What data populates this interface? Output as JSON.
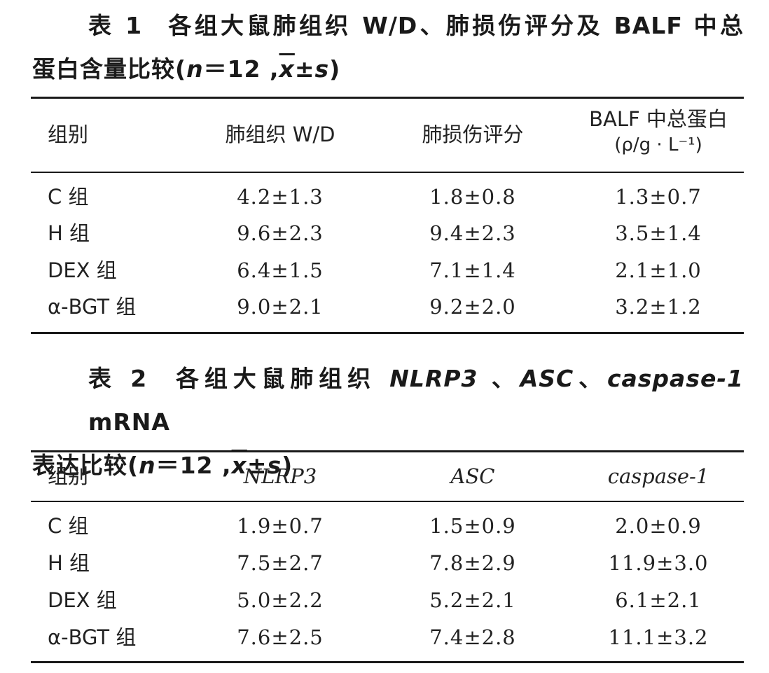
{
  "table1": {
    "caption": {
      "number": "表 1",
      "title_line1": "各组大鼠肺组织 W/D、肺损伤评分及 BALF 中总",
      "title_line2_prefix": "蛋白含量比较(",
      "n_label": "n",
      "n_value": "＝12 ,",
      "xbar": "x",
      "pm_s": "±",
      "s_label": "s",
      "close": ")"
    },
    "headers": [
      "组别",
      "肺组织 W/D",
      "肺损伤评分",
      "BALF 中总蛋白",
      "(ρ/g · L⁻¹)"
    ],
    "rows": [
      {
        "group": "C 组",
        "wd": "4.2±1.3",
        "score": "1.8±0.8",
        "protein": "1.3±0.7"
      },
      {
        "group": "H 组",
        "wd": "9.6±2.3",
        "score": "9.4±2.3",
        "protein": "3.5±1.4"
      },
      {
        "group": "DEX 组",
        "wd": "6.4±1.5",
        "score": "7.1±1.4",
        "protein": "2.1±1.0"
      },
      {
        "group": "α-BGT 组",
        "wd": "9.0±2.1",
        "score": "9.2±2.0",
        "protein": "3.2±1.2"
      }
    ]
  },
  "table2": {
    "caption": {
      "number": "表 2",
      "title_pre": "各组大鼠肺组织 ",
      "gene1": "NLRP3",
      "sep1": " 、",
      "gene2": "ASC",
      "sep2": "、",
      "gene3": "caspase-1",
      "title_post": " mRNA",
      "title_line2_prefix": "表达比较(",
      "n_label": "n",
      "n_value": "＝12 ,",
      "xbar": "x",
      "pm_s": "±",
      "s_label": "s",
      "close": ")"
    },
    "headers": [
      "组别",
      "NLRP3",
      "ASC",
      "caspase-1"
    ],
    "rows": [
      {
        "group": "C 组",
        "nlrp3": "1.9±0.7",
        "asc": "1.5±0.9",
        "casp": "2.0±0.9"
      },
      {
        "group": "H 组",
        "nlrp3": "7.5±2.7",
        "asc": "7.8±2.9",
        "casp": "11.9±3.0"
      },
      {
        "group": "DEX 组",
        "nlrp3": "5.0±2.2",
        "asc": "5.2±2.1",
        "casp": "6.1±2.1"
      },
      {
        "group": "α-BGT 组",
        "nlrp3": "7.6±2.5",
        "asc": "7.4±2.8",
        "casp": "11.1±3.2"
      }
    ]
  }
}
